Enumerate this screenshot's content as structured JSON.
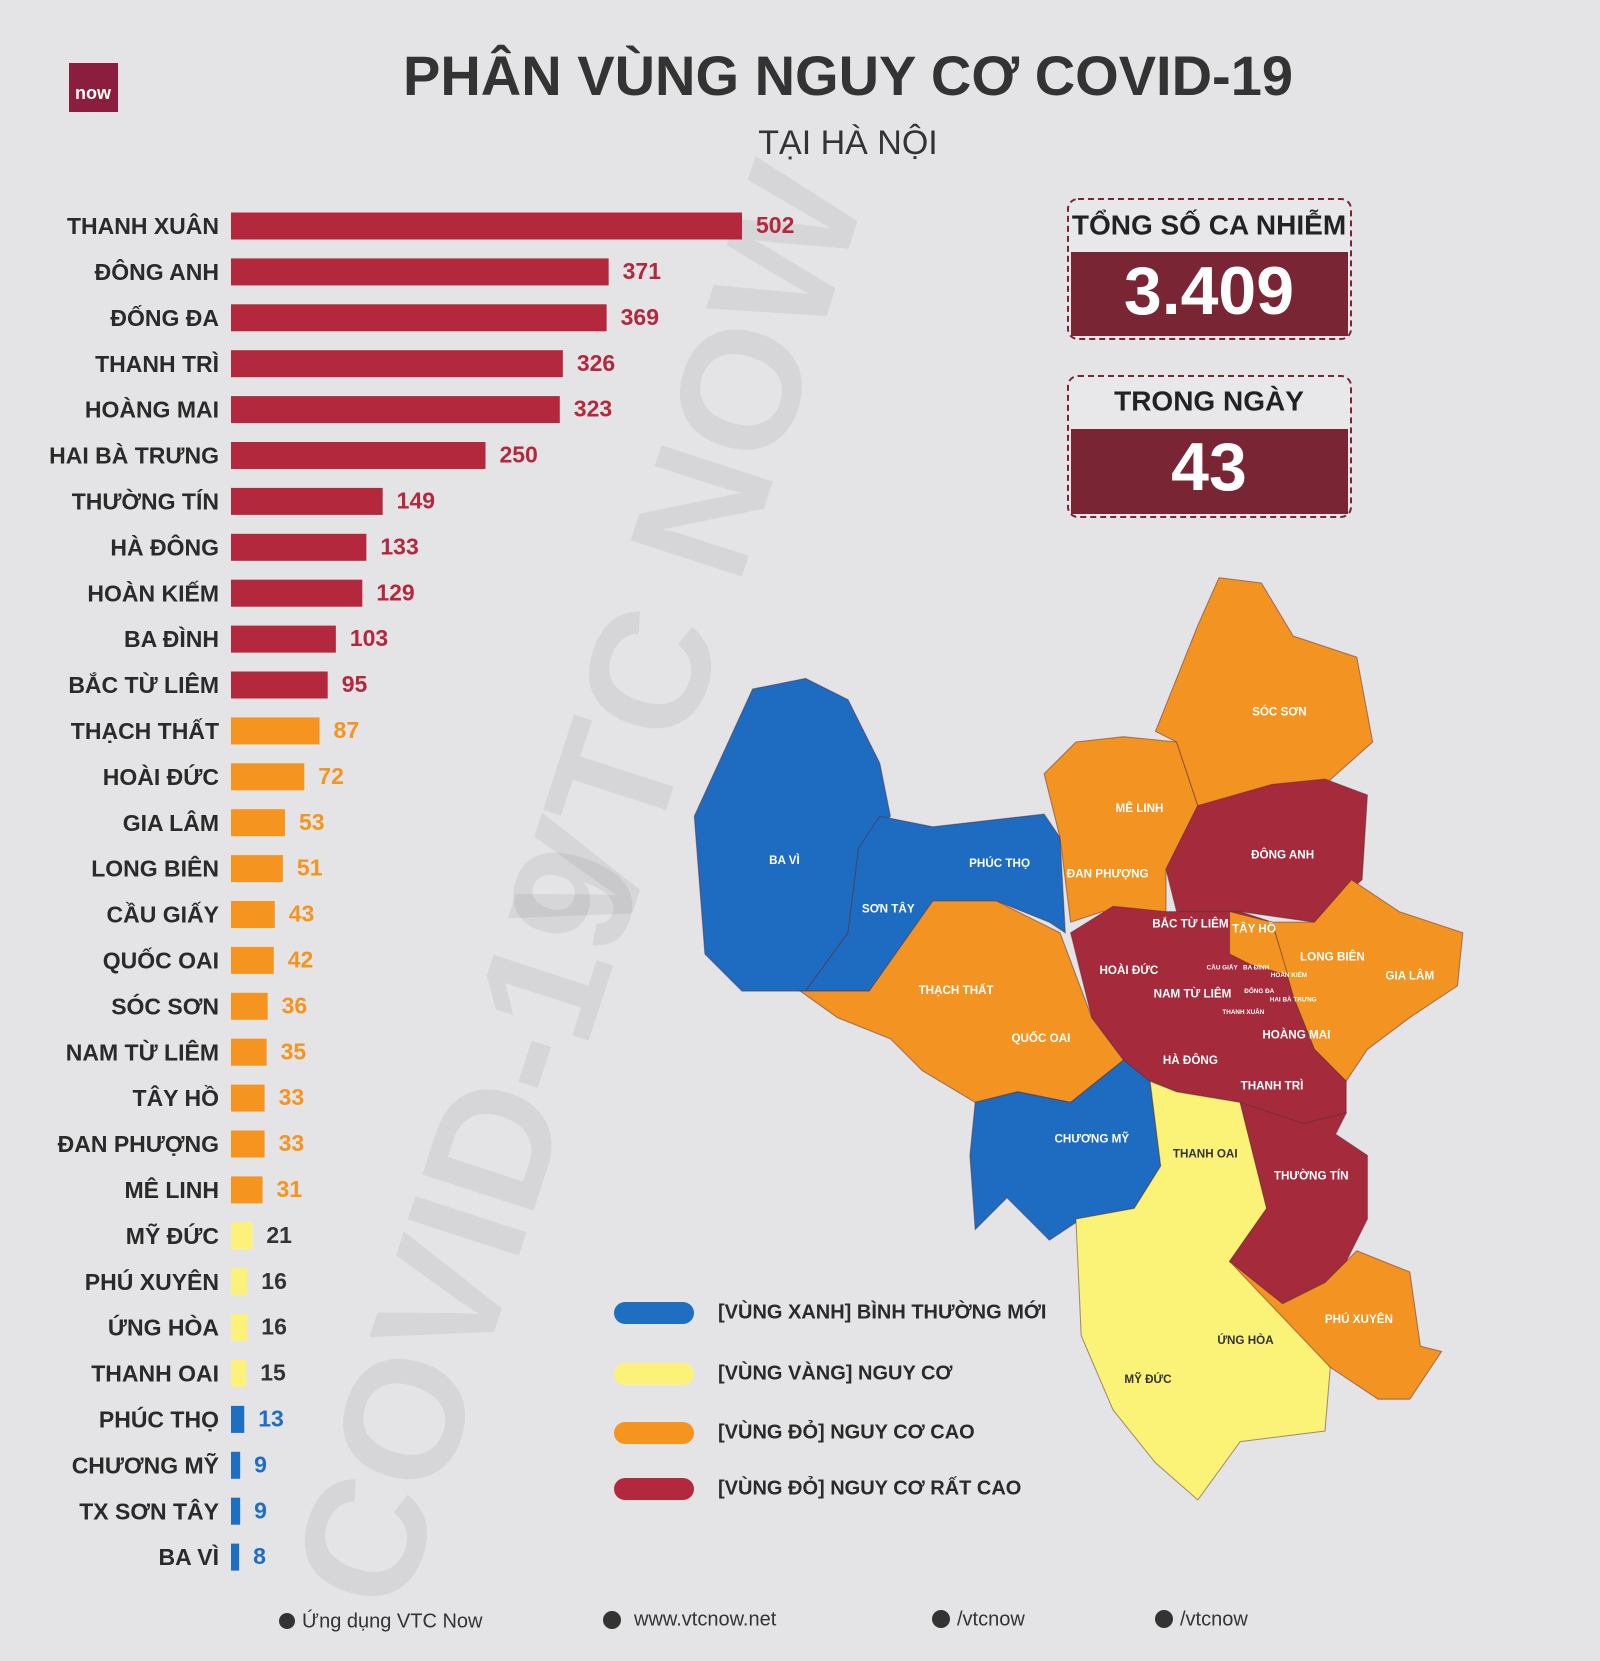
{
  "header": {
    "logo": "now",
    "title": "PHÂN VÙNG NGUY CƠ COVID-19",
    "subtitle": "TẠI HÀ NỘI"
  },
  "watermark": [
    "VTC NOW",
    "COVID-19"
  ],
  "stats": [
    {
      "label": "TỔNG SỐ CA NHIỄM",
      "value": "3.409"
    },
    {
      "label": "TRONG NGÀY",
      "value": "43"
    }
  ],
  "chart_data": {
    "type": "bar",
    "orientation": "horizontal",
    "categories": [
      "THANH XUÂN",
      "ĐÔNG ANH",
      "ĐỐNG ĐA",
      "THANH TRÌ",
      "HOÀNG MAI",
      "HAI BÀ TRƯNG",
      "THƯỜNG TÍN",
      "HÀ ĐÔNG",
      "HOÀN KIẾM",
      "BA ĐÌNH",
      "BẮC TỪ LIÊM",
      "THẠCH THẤT",
      "HOÀI ĐỨC",
      "GIA LÂM",
      "LONG BIÊN",
      "CẦU GIẤY",
      "QUỐC OAI",
      "SÓC SƠN",
      "NAM TỪ LIÊM",
      "TÂY HỒ",
      "ĐAN PHƯỢNG",
      "MÊ LINH",
      "MỸ ĐỨC",
      "PHÚ XUYÊN",
      "ỨNG HÒA",
      "THANH OAI",
      "PHÚC THỌ",
      "CHƯƠNG MỸ",
      "TX SƠN TÂY",
      "BA VÌ"
    ],
    "values": [
      502,
      371,
      369,
      326,
      323,
      250,
      149,
      133,
      129,
      103,
      95,
      87,
      72,
      53,
      51,
      43,
      42,
      36,
      35,
      33,
      33,
      31,
      21,
      16,
      16,
      15,
      13,
      9,
      9,
      8
    ],
    "zones": [
      3,
      3,
      3,
      3,
      3,
      3,
      3,
      3,
      3,
      3,
      3,
      2,
      2,
      2,
      2,
      2,
      2,
      2,
      2,
      2,
      2,
      2,
      1,
      1,
      1,
      1,
      0,
      0,
      0,
      0
    ],
    "xlim": [
      0,
      502
    ]
  },
  "legend": {
    "items": [
      {
        "name": "[VÙNG XANH] BÌNH THƯỜNG MỚI",
        "color": "#1e6ec2",
        "text_color": "#1e6ec2"
      },
      {
        "name": "[VÙNG VÀNG] NGUY CƠ",
        "color": "#fcf27a",
        "text_color": "#333333"
      },
      {
        "name": "[VÙNG ĐỎ] NGUY CƠ CAO",
        "color": "#f5941e",
        "text_color": "#f5941e"
      },
      {
        "name": "[VÙNG ĐỎ] NGUY CƠ RẤT CAO",
        "color": "#b3283c",
        "text_color": "#b3283c"
      }
    ]
  },
  "map": {
    "labels": [
      "SÓC SƠN",
      "MÊ LINH",
      "ĐÔNG ANH",
      "ĐAN PHƯỢNG",
      "BA VÌ",
      "PHÚC THỌ",
      "SƠN TÂY",
      "BẮC TỪ LIÊM",
      "TÂY HỒ",
      "HOÀI ĐỨC",
      "LONG BIÊN",
      "GIA LÂM",
      "THẠCH THẤT",
      "NAM TỪ LIÊM",
      "QUỐC OAI",
      "HOÀNG MAI",
      "HÀ ĐÔNG",
      "THANH TRÌ",
      "CHƯƠNG MỸ",
      "THANH OAI",
      "THƯỜNG TÍN",
      "PHÚ XUYÊN",
      "ỨNG HÒA",
      "MỸ ĐỨC",
      "BA ĐÌNH",
      "HOÀN KIẾM",
      "ĐỐNG ĐA",
      "HAI BÀ TRƯNG",
      "THANH XUÂN",
      "CẦU GIẤY"
    ]
  },
  "footer": [
    "Ứng dụng VTC Now",
    "www.vtcnow.net",
    "/vtcnow",
    "/vtcnow"
  ]
}
